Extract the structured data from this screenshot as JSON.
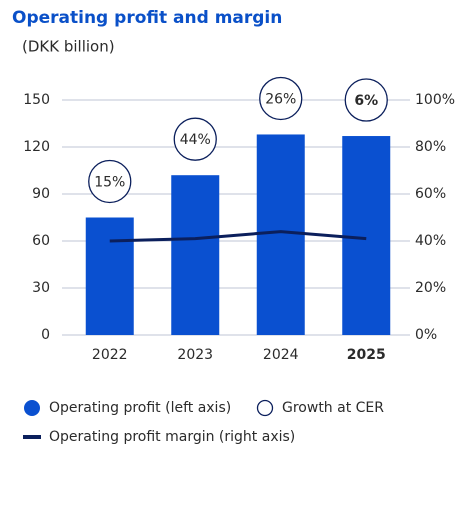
{
  "chart_data": {
    "type": "bar",
    "title": "Operating profit and margin",
    "subtitle": "(DKK billion)",
    "categories": [
      "2022",
      "2023",
      "2024",
      "2025"
    ],
    "series": [
      {
        "name": "Operating profit (left axis)",
        "type": "bar",
        "color": "#0a50d0",
        "values": [
          75,
          102,
          128,
          127
        ]
      },
      {
        "name": "Operating profit margin (right axis)",
        "type": "line",
        "axis": "y2",
        "color": "#0b1f5c",
        "values": [
          40,
          41,
          44,
          41
        ]
      },
      {
        "name": "Growth at CER",
        "type": "label-circle",
        "color": "#0b1f5c",
        "values": [
          15,
          44,
          26,
          6
        ],
        "value_labels": [
          "15%",
          "44%",
          "26%",
          "6%"
        ]
      }
    ],
    "ylim": [
      0,
      150
    ],
    "yticks": [
      0,
      30,
      60,
      90,
      120,
      150
    ],
    "y2lim": [
      0,
      100
    ],
    "y2ticks": [
      {
        "value": 0,
        "label": "0%"
      },
      {
        "value": 20,
        "label": "20%"
      },
      {
        "value": 40,
        "label": "40%"
      },
      {
        "value": 60,
        "label": "60%"
      },
      {
        "value": 80,
        "label": "80%"
      },
      {
        "value": 100,
        "label": "100%"
      }
    ],
    "grid": true
  }
}
